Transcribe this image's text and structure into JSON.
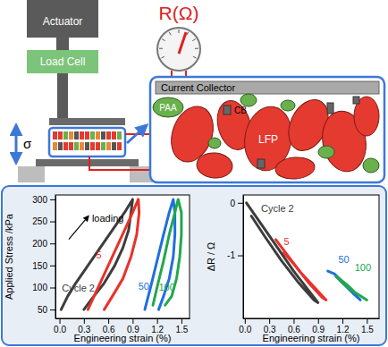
{
  "diagram": {
    "actuator": "Actuator",
    "load_cell": "Load Cell",
    "meter": "R(Ω)",
    "stress": "σ",
    "current_collector": "Current Collector",
    "binder": "PAA",
    "carbon": "CB",
    "active": "LFP"
  },
  "chart_data": [
    {
      "type": "line",
      "x_label": "Engineering strain (%)",
      "y_label": "Applied Stress /kPa",
      "xlim": [
        -0.05,
        1.6
      ],
      "ylim": [
        30,
        310
      ],
      "xticks": [
        {
          "value": 0,
          "label": "0.0"
        },
        0.3,
        0.6,
        0.9,
        1.2,
        1.5
      ],
      "yticks": [
        50,
        100,
        150,
        200,
        250,
        300
      ],
      "series": [
        {
          "color": "#3d3d3d",
          "x": [
            0.02,
            0.1,
            0.2,
            0.35,
            0.5,
            0.65,
            0.8,
            0.9,
            0.88,
            0.85,
            0.78,
            0.68,
            0.55,
            0.4,
            0.3
          ],
          "y": [
            50,
            80,
            110,
            150,
            190,
            230,
            270,
            300,
            270,
            230,
            190,
            150,
            110,
            75,
            50
          ]
        },
        {
          "color": "#e8322a",
          "x": [
            0.35,
            0.45,
            0.6,
            0.75,
            0.9,
            0.97,
            0.98,
            0.95,
            0.88,
            0.78,
            0.65,
            0.55
          ],
          "y": [
            50,
            90,
            150,
            210,
            270,
            300,
            270,
            220,
            170,
            120,
            80,
            50
          ]
        },
        {
          "color": "#1f6fe0",
          "x": [
            1.05,
            1.12,
            1.2,
            1.28,
            1.35,
            1.4,
            1.42,
            1.42,
            1.4,
            1.35,
            1.28,
            1.22
          ],
          "y": [
            50,
            100,
            160,
            220,
            270,
            300,
            270,
            220,
            170,
            120,
            80,
            50
          ]
        },
        {
          "color": "#22a84a",
          "x": [
            1.15,
            1.2,
            1.28,
            1.35,
            1.42,
            1.46,
            1.5,
            1.5,
            1.48,
            1.44,
            1.38,
            1.3
          ],
          "y": [
            60,
            100,
            160,
            220,
            270,
            300,
            270,
            220,
            170,
            120,
            80,
            60
          ]
        }
      ],
      "annotations": [
        {
          "text": "Cycle 2",
          "x": 0.03,
          "y": 90,
          "color": "#3d3d3d"
        },
        {
          "text": "5",
          "x": 0.45,
          "y": 165,
          "color": "#e8322a"
        },
        {
          "text": "50",
          "x": 0.97,
          "y": 95,
          "color": "#1f6fe0"
        },
        {
          "text": "100",
          "x": 1.22,
          "y": 92,
          "color": "#22a84a"
        },
        {
          "text": "loading",
          "x": 0.4,
          "y": 250,
          "color": "#000000",
          "marker": "arrow"
        }
      ]
    },
    {
      "type": "line",
      "x_label": "Engineering strain (%)",
      "y_label": "ΔR / Ω",
      "xlim": [
        -0.02,
        1.65
      ],
      "ylim": [
        -2.2,
        0.15
      ],
      "xticks": [
        {
          "value": 0,
          "label": "0.0"
        },
        0.3,
        0.6,
        0.9,
        1.2,
        1.5
      ],
      "yticks": [
        0,
        -1
      ],
      "series": [
        {
          "color": "#3d3d3d",
          "x": [
            0.02,
            0.2,
            0.4,
            0.6,
            0.8,
            0.9,
            0.85,
            0.65,
            0.45,
            0.25,
            0.08
          ],
          "y": [
            0,
            -0.4,
            -0.85,
            -1.3,
            -1.7,
            -1.9,
            -1.85,
            -1.5,
            -1.1,
            -0.65,
            -0.25
          ]
        },
        {
          "color": "#e8322a",
          "x": [
            0.38,
            0.55,
            0.7,
            0.85,
            1.0,
            0.95,
            0.8,
            0.62,
            0.48
          ],
          "y": [
            -0.7,
            -1.05,
            -1.35,
            -1.6,
            -1.85,
            -1.8,
            -1.55,
            -1.2,
            -0.95
          ]
        },
        {
          "color": "#1f6fe0",
          "x": [
            1.02,
            1.1,
            1.2,
            1.3,
            1.42,
            1.35,
            1.25,
            1.12
          ],
          "y": [
            -1.3,
            -1.35,
            -1.5,
            -1.65,
            -1.85,
            -1.75,
            -1.6,
            -1.4
          ]
        },
        {
          "color": "#22a84a",
          "x": [
            1.12,
            1.25,
            1.35,
            1.5,
            1.45,
            1.3,
            1.18
          ],
          "y": [
            -1.4,
            -1.55,
            -1.7,
            -1.85,
            -1.8,
            -1.65,
            -1.5
          ]
        }
      ],
      "annotations": [
        {
          "text": "Cycle 2",
          "x": 0.2,
          "y": -0.17,
          "color": "#3d3d3d"
        },
        {
          "text": "5",
          "x": 0.48,
          "y": -0.8,
          "color": "#e8322a"
        },
        {
          "text": "50",
          "x": 1.15,
          "y": -1.15,
          "color": "#1f6fe0"
        },
        {
          "text": "100",
          "x": 1.35,
          "y": -1.3,
          "color": "#22a84a"
        }
      ]
    }
  ]
}
